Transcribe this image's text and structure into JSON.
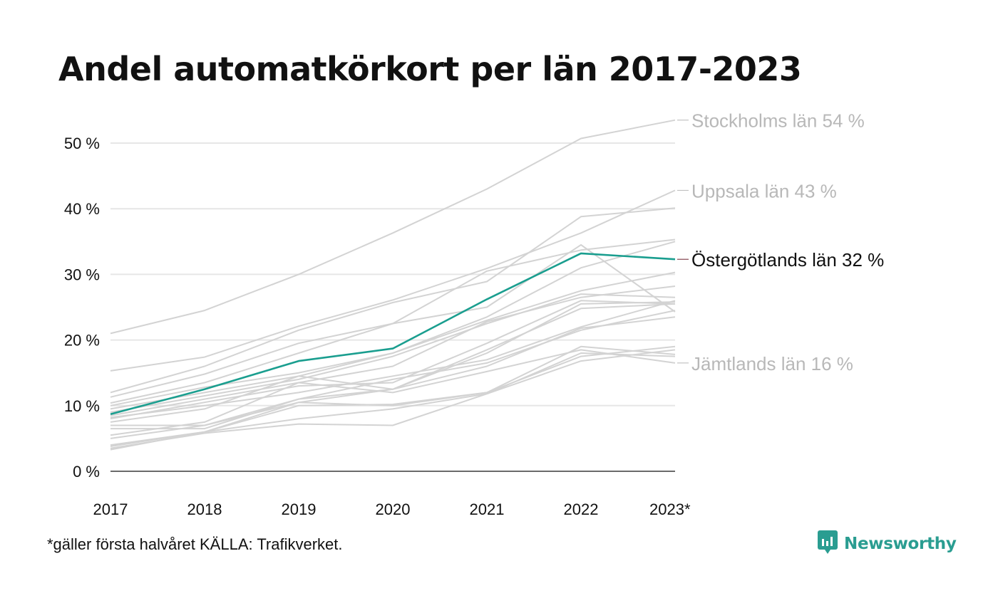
{
  "title": "Andel automatkörkort per län 2017-2023",
  "footnote": "*gäller första halvåret KÄLLA: Trafikverket.",
  "brand": {
    "name": "Newsworthy",
    "icon": "newsworthy-logo-icon"
  },
  "colors": {
    "highlight": "#1a9e8f",
    "background_line": "#d3d3d3",
    "label_gray": "#b8b8b8",
    "grid": "#e6e6e6",
    "text": "#111111"
  },
  "chart_data": {
    "type": "line",
    "x": [
      "2017",
      "2018",
      "2019",
      "2020",
      "2021",
      "2022",
      "2023*"
    ],
    "ylim": [
      0,
      55
    ],
    "y_ticks": [
      0,
      10,
      20,
      30,
      40,
      50
    ],
    "y_tick_labels": [
      "0 %",
      "10 %",
      "20 %",
      "30 %",
      "40 %",
      "50 %"
    ],
    "xlabel": "",
    "ylabel": "",
    "grid": true,
    "series": [
      {
        "name": "Stockholms län",
        "values": [
          21.0,
          24.5,
          30.0,
          36.3,
          43.0,
          50.7,
          53.5
        ],
        "label": "Stockholms län 54 %",
        "highlight": false
      },
      {
        "name": "Uppsala län",
        "values": [
          15.3,
          17.4,
          22.1,
          26.1,
          30.9,
          36.3,
          42.8
        ],
        "label": "Uppsala län 43 %",
        "highlight": false
      },
      {
        "name": "Östergötlands län",
        "values": [
          8.7,
          12.5,
          16.8,
          18.7,
          26.2,
          33.2,
          32.3
        ],
        "label": "Östergötlands län 32 %",
        "highlight": true
      },
      {
        "name": "Jämtlands län",
        "values": [
          5.5,
          7.5,
          13.5,
          12.0,
          15.2,
          18.5,
          16.5
        ],
        "label": "Jämtlands län 16 %",
        "highlight": false
      },
      {
        "name": "",
        "values": [
          12.0,
          16.0,
          21.5,
          25.7,
          28.9,
          38.8,
          40.1
        ],
        "label": "",
        "highlight": false
      },
      {
        "name": "",
        "values": [
          11.3,
          14.8,
          19.5,
          22.5,
          30.5,
          33.7,
          35.3
        ],
        "label": "",
        "highlight": false
      },
      {
        "name": "",
        "values": [
          10.4,
          13.5,
          18.0,
          22.5,
          25.0,
          34.5,
          24.3
        ],
        "label": "",
        "highlight": false
      },
      {
        "name": "",
        "values": [
          10.0,
          12.8,
          15.0,
          18.0,
          23.5,
          31.0,
          35.0
        ],
        "label": "",
        "highlight": false
      },
      {
        "name": "",
        "values": [
          9.5,
          12.0,
          14.5,
          18.0,
          23.0,
          27.5,
          30.3
        ],
        "label": "",
        "highlight": false
      },
      {
        "name": "",
        "values": [
          9.0,
          11.5,
          14.0,
          17.5,
          22.5,
          27.0,
          26.5
        ],
        "label": "",
        "highlight": false
      },
      {
        "name": "",
        "values": [
          8.5,
          11.0,
          13.5,
          16.0,
          22.8,
          26.5,
          28.2
        ],
        "label": "",
        "highlight": false
      },
      {
        "name": "",
        "values": [
          8.0,
          10.5,
          13.0,
          13.5,
          19.5,
          26.0,
          25.5
        ],
        "label": "",
        "highlight": false
      },
      {
        "name": "",
        "values": [
          7.5,
          9.5,
          14.5,
          12.5,
          18.0,
          25.5,
          25.8
        ],
        "label": "",
        "highlight": false
      },
      {
        "name": "",
        "values": [
          7.0,
          7.0,
          10.5,
          12.5,
          18.5,
          24.8,
          25.5
        ],
        "label": "",
        "highlight": false
      },
      {
        "name": "",
        "values": [
          6.5,
          6.5,
          11.0,
          14.0,
          16.5,
          21.5,
          24.5
        ],
        "label": "",
        "highlight": false
      },
      {
        "name": "",
        "values": [
          5.0,
          7.0,
          11.0,
          12.5,
          16.0,
          21.8,
          23.5
        ],
        "label": "",
        "highlight": false
      },
      {
        "name": "",
        "values": [
          4.0,
          6.0,
          10.5,
          10.0,
          12.0,
          17.5,
          19.0
        ],
        "label": "",
        "highlight": false
      },
      {
        "name": "",
        "values": [
          3.8,
          6.0,
          8.0,
          9.5,
          11.8,
          18.0,
          17.5
        ],
        "label": "",
        "highlight": false
      },
      {
        "name": "",
        "values": [
          3.5,
          5.8,
          7.2,
          7.0,
          11.8,
          16.8,
          18.5
        ],
        "label": "",
        "highlight": false
      },
      {
        "name": "",
        "values": [
          3.3,
          6.0,
          10.0,
          10.2,
          12.0,
          19.0,
          17.8
        ],
        "label": "",
        "highlight": false
      },
      {
        "name": "",
        "values": [
          8.2,
          10.0,
          12.0,
          14.5,
          17.0,
          22.0,
          26.0
        ],
        "label": "",
        "highlight": false
      }
    ]
  }
}
